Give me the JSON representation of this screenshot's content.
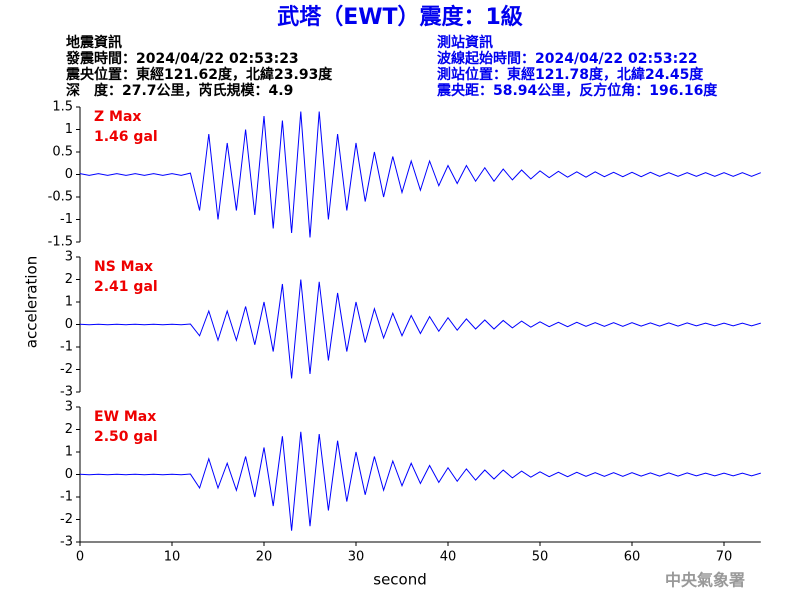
{
  "header": {
    "title": "武塔（EWT）震度：1級",
    "left": [
      "地震資訊",
      "發震時間：2024/04/22 02:53:23",
      "震央位置：東經121.62度，北緯23.93度",
      "深　度：27.7公里，芮氏規模：4.9"
    ],
    "right": [
      "測站資訊",
      "波線起始時間：2024/04/22 02:53:22",
      "測站位置：東經121.78度，北緯24.45度",
      "震央距：58.94公里，反方位角：196.16度"
    ],
    "y_label": "acceleration",
    "x_label": "second",
    "footer": "中央氣象署"
  },
  "chart_data": [
    {
      "type": "line",
      "annotation": [
        "Z Max",
        "1.46 gal"
      ],
      "annotation_color": "#ee0000",
      "x": [
        0,
        1,
        2,
        3,
        4,
        5,
        6,
        7,
        8,
        9,
        10,
        11,
        12,
        13,
        14,
        15,
        16,
        17,
        18,
        19,
        20,
        21,
        22,
        23,
        24,
        25,
        26,
        27,
        28,
        29,
        30,
        31,
        32,
        33,
        34,
        35,
        36,
        37,
        38,
        39,
        40,
        41,
        42,
        43,
        44,
        45,
        46,
        47,
        48,
        49,
        50,
        51,
        52,
        53,
        54,
        55,
        56,
        57,
        58,
        59,
        60,
        61,
        62,
        63,
        64,
        65,
        66,
        67,
        68,
        69,
        70,
        71,
        72,
        73,
        74
      ],
      "series": [
        {
          "color": "#0000ff",
          "values": [
            0.02,
            -0.02,
            0.02,
            -0.02,
            0.02,
            -0.02,
            0.02,
            -0.02,
            0.02,
            -0.02,
            0.02,
            -0.02,
            0.03,
            -0.8,
            0.9,
            -1.0,
            0.7,
            -0.8,
            1.0,
            -0.9,
            1.3,
            -1.2,
            1.2,
            -1.3,
            1.4,
            -1.4,
            1.4,
            -1.0,
            0.9,
            -0.8,
            0.7,
            -0.6,
            0.5,
            -0.5,
            0.4,
            -0.4,
            0.3,
            -0.35,
            0.3,
            -0.25,
            0.2,
            -0.2,
            0.2,
            -0.15,
            0.15,
            -0.15,
            0.12,
            -0.12,
            0.1,
            -0.1,
            0.08,
            -0.07,
            0.07,
            -0.06,
            0.06,
            -0.06,
            0.06,
            -0.05,
            0.05,
            -0.05,
            0.05,
            -0.05,
            0.05,
            -0.04,
            0.04,
            -0.04,
            0.04,
            -0.04,
            0.04,
            -0.04,
            0.04,
            -0.04,
            0.04,
            -0.04,
            0.04
          ]
        }
      ],
      "xlim": [
        0,
        74
      ],
      "ylim": [
        -1.5,
        1.5
      ],
      "yticks": [
        -1.5,
        -1,
        -0.5,
        0,
        0.5,
        1,
        1.5
      ]
    },
    {
      "type": "line",
      "annotation": [
        "NS Max",
        "2.41 gal"
      ],
      "annotation_color": "#ee0000",
      "x": [
        0,
        1,
        2,
        3,
        4,
        5,
        6,
        7,
        8,
        9,
        10,
        11,
        12,
        13,
        14,
        15,
        16,
        17,
        18,
        19,
        20,
        21,
        22,
        23,
        24,
        25,
        26,
        27,
        28,
        29,
        30,
        31,
        32,
        33,
        34,
        35,
        36,
        37,
        38,
        39,
        40,
        41,
        42,
        43,
        44,
        45,
        46,
        47,
        48,
        49,
        50,
        51,
        52,
        53,
        54,
        55,
        56,
        57,
        58,
        59,
        60,
        61,
        62,
        63,
        64,
        65,
        66,
        67,
        68,
        69,
        70,
        71,
        72,
        73,
        74
      ],
      "series": [
        {
          "color": "#0000ff",
          "values": [
            0.01,
            -0.01,
            0.01,
            -0.01,
            0.01,
            -0.01,
            0.01,
            -0.01,
            0.01,
            -0.01,
            0.01,
            -0.01,
            0.02,
            -0.5,
            0.6,
            -0.7,
            0.6,
            -0.7,
            0.8,
            -0.9,
            1.0,
            -1.2,
            1.8,
            -2.4,
            2.0,
            -2.2,
            1.9,
            -1.6,
            1.4,
            -1.2,
            1.0,
            -0.8,
            0.7,
            -0.6,
            0.5,
            -0.5,
            0.4,
            -0.4,
            0.35,
            -0.3,
            0.3,
            -0.25,
            0.25,
            -0.2,
            0.2,
            -0.2,
            0.18,
            -0.15,
            0.15,
            -0.12,
            0.12,
            -0.1,
            0.1,
            -0.1,
            0.1,
            -0.08,
            0.08,
            -0.08,
            0.08,
            -0.08,
            0.08,
            -0.07,
            0.07,
            -0.07,
            0.07,
            -0.07,
            0.07,
            -0.06,
            0.06,
            -0.06,
            0.06,
            -0.06,
            0.06,
            -0.06,
            0.06
          ]
        }
      ],
      "xlim": [
        0,
        74
      ],
      "ylim": [
        -3,
        3
      ],
      "yticks": [
        -3,
        -2,
        -1,
        0,
        1,
        2,
        3
      ]
    },
    {
      "type": "line",
      "annotation": [
        "EW Max",
        "2.50 gal"
      ],
      "annotation_color": "#ee0000",
      "x": [
        0,
        1,
        2,
        3,
        4,
        5,
        6,
        7,
        8,
        9,
        10,
        11,
        12,
        13,
        14,
        15,
        16,
        17,
        18,
        19,
        20,
        21,
        22,
        23,
        24,
        25,
        26,
        27,
        28,
        29,
        30,
        31,
        32,
        33,
        34,
        35,
        36,
        37,
        38,
        39,
        40,
        41,
        42,
        43,
        44,
        45,
        46,
        47,
        48,
        49,
        50,
        51,
        52,
        53,
        54,
        55,
        56,
        57,
        58,
        59,
        60,
        61,
        62,
        63,
        64,
        65,
        66,
        67,
        68,
        69,
        70,
        71,
        72,
        73,
        74
      ],
      "series": [
        {
          "color": "#0000ff",
          "values": [
            0.01,
            -0.01,
            0.01,
            -0.01,
            0.01,
            -0.01,
            0.01,
            -0.01,
            0.01,
            -0.01,
            0.01,
            -0.01,
            0.02,
            -0.6,
            0.7,
            -0.6,
            0.5,
            -0.7,
            0.8,
            -1.0,
            1.2,
            -1.4,
            1.7,
            -2.5,
            1.9,
            -2.3,
            1.8,
            -1.6,
            1.5,
            -1.2,
            1.0,
            -0.9,
            0.8,
            -0.7,
            0.6,
            -0.5,
            0.5,
            -0.4,
            0.4,
            -0.35,
            0.3,
            -0.3,
            0.25,
            -0.25,
            0.2,
            -0.2,
            0.2,
            -0.15,
            0.15,
            -0.12,
            0.12,
            -0.1,
            0.1,
            -0.1,
            0.1,
            -0.08,
            0.08,
            -0.08,
            0.08,
            -0.08,
            0.08,
            -0.07,
            0.07,
            -0.07,
            0.07,
            -0.07,
            0.07,
            -0.06,
            0.06,
            -0.06,
            0.06,
            -0.06,
            0.06,
            -0.06,
            0.06
          ]
        }
      ],
      "xlim": [
        0,
        74
      ],
      "ylim": [
        -3,
        3
      ],
      "yticks": [
        -3,
        -2,
        -1,
        0,
        1,
        2,
        3
      ],
      "xticks": [
        0,
        10,
        20,
        30,
        40,
        50,
        60,
        70
      ]
    }
  ]
}
